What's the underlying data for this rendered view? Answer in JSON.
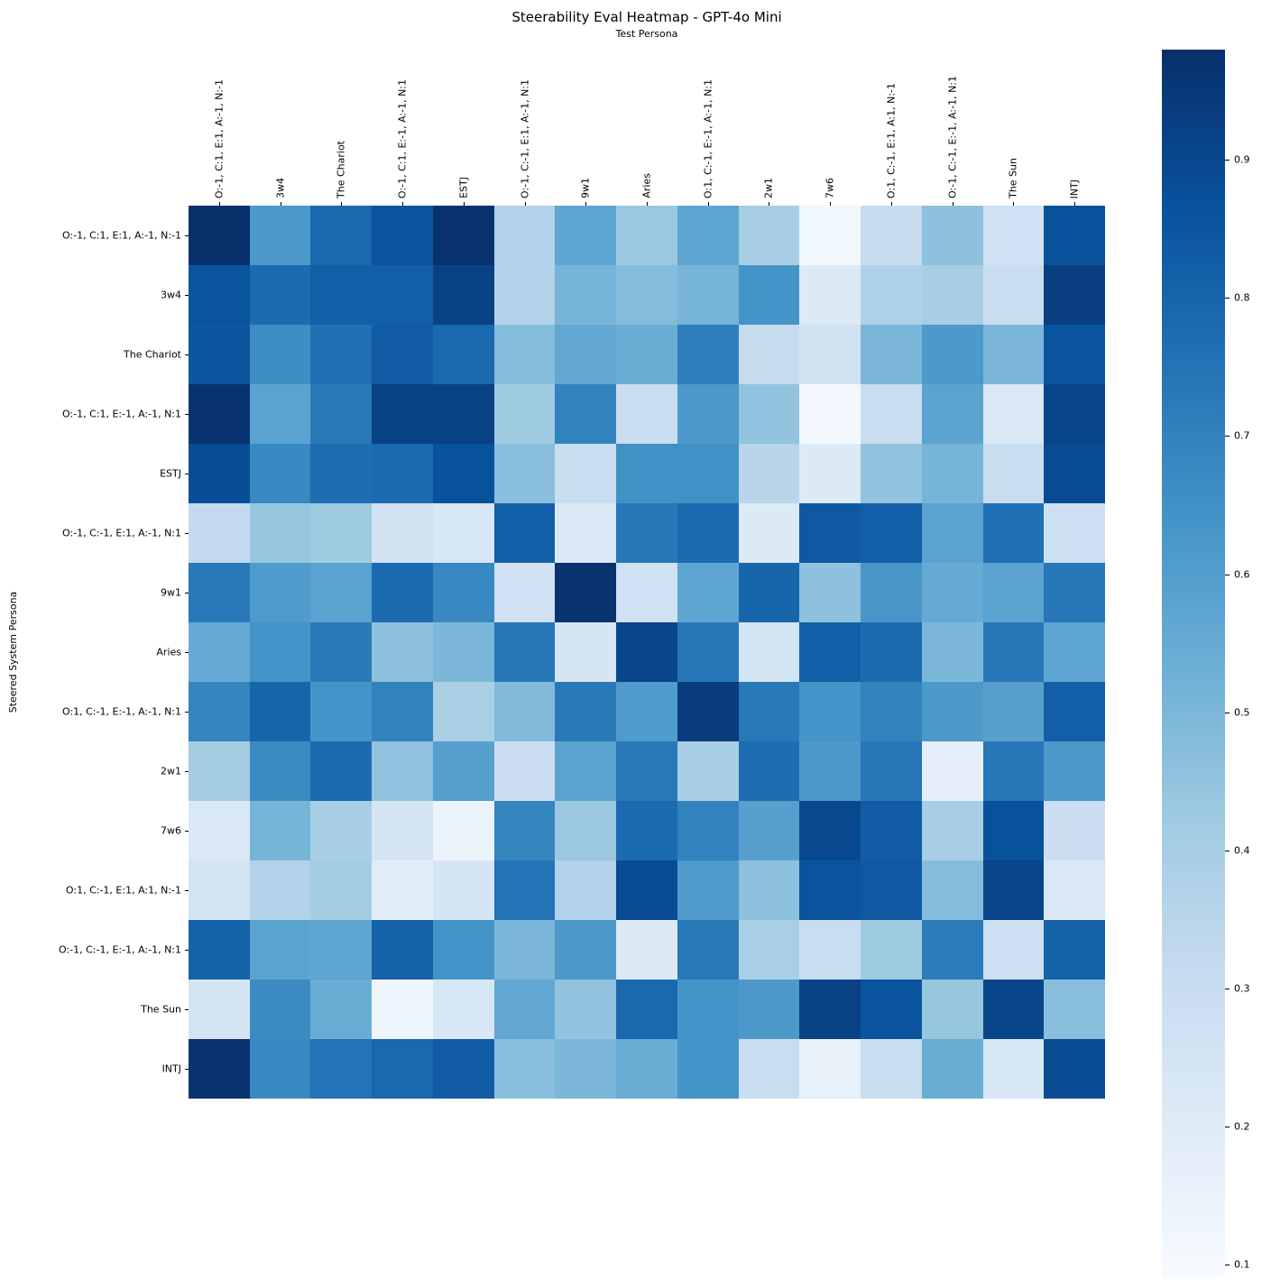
{
  "figure": {
    "title": "Steerability Eval Heatmap - GPT-4o Mini",
    "x_axis_label": "Test Persona",
    "y_axis_label": "Steered System Persona"
  },
  "chart_data": {
    "type": "heatmap",
    "title": "Steerability Eval Heatmap - GPT-4o Mini",
    "xlabel": "Test Persona",
    "ylabel": "Steered System Persona",
    "colormap": "Blues",
    "vmin": 0.09,
    "vmax": 0.98,
    "legend_position": "right-colorbar",
    "grid": false,
    "colorbar_ticks": [
      0.9,
      0.8,
      0.7,
      0.6,
      0.5,
      0.4,
      0.3,
      0.2,
      0.1
    ],
    "colormap_stops": [
      [
        0.0,
        "#f7fbff"
      ],
      [
        0.125,
        "#deebf7"
      ],
      [
        0.25,
        "#c6dbef"
      ],
      [
        0.375,
        "#9ecae1"
      ],
      [
        0.5,
        "#6baed6"
      ],
      [
        0.625,
        "#4292c6"
      ],
      [
        0.75,
        "#2171b5"
      ],
      [
        0.875,
        "#08519c"
      ],
      [
        1.0,
        "#08306b"
      ]
    ],
    "x_labels": [
      "O:-1, C:1, E:1, A:-1, N:-1",
      "3w4",
      "The Chariot",
      "O:-1, C:1, E:-1, A:-1, N:1",
      "ESTJ",
      "O:-1, C:-1, E:1, A:-1, N:1",
      "9w1",
      "Aries",
      "O:1, C:-1, E:-1, A:-1, N:1",
      "2w1",
      "7w6",
      "O:1, C:-1, E:1, A:1, N:-1",
      "O:-1, C:-1, E:-1, A:-1, N:1",
      "The Sun",
      "INTJ"
    ],
    "y_labels": [
      "O:-1, C:1, E:1, A:-1, N:-1",
      "3w4",
      "The Chariot",
      "O:-1, C:1, E:-1, A:-1, N:1",
      "ESTJ",
      "O:-1, C:-1, E:1, A:-1, N:1",
      "9w1",
      "Aries",
      "O:1, C:-1, E:-1, A:-1, N:1",
      "2w1",
      "7w6",
      "O:1, C:-1, E:1, A:1, N:-1",
      "O:-1, C:-1, E:-1, A:-1, N:1",
      "The Sun",
      "INTJ"
    ],
    "values": [
      [
        0.98,
        0.62,
        0.79,
        0.86,
        0.97,
        0.37,
        0.57,
        0.43,
        0.57,
        0.4,
        0.12,
        0.31,
        0.46,
        0.27,
        0.87
      ],
      [
        0.86,
        0.78,
        0.82,
        0.82,
        0.92,
        0.37,
        0.51,
        0.48,
        0.51,
        0.64,
        0.21,
        0.38,
        0.4,
        0.3,
        0.93
      ],
      [
        0.85,
        0.66,
        0.76,
        0.83,
        0.79,
        0.48,
        0.56,
        0.54,
        0.71,
        0.31,
        0.26,
        0.5,
        0.62,
        0.5,
        0.86
      ],
      [
        0.97,
        0.58,
        0.73,
        0.92,
        0.92,
        0.42,
        0.7,
        0.3,
        0.62,
        0.45,
        0.11,
        0.3,
        0.58,
        0.22,
        0.91
      ],
      [
        0.88,
        0.68,
        0.77,
        0.78,
        0.87,
        0.47,
        0.3,
        0.65,
        0.65,
        0.35,
        0.21,
        0.45,
        0.51,
        0.3,
        0.89
      ],
      [
        0.32,
        0.44,
        0.42,
        0.26,
        0.23,
        0.82,
        0.22,
        0.74,
        0.78,
        0.21,
        0.84,
        0.82,
        0.58,
        0.76,
        0.28
      ],
      [
        0.73,
        0.61,
        0.58,
        0.78,
        0.68,
        0.27,
        0.97,
        0.27,
        0.57,
        0.8,
        0.46,
        0.63,
        0.55,
        0.58,
        0.74
      ],
      [
        0.55,
        0.64,
        0.73,
        0.46,
        0.5,
        0.74,
        0.24,
        0.91,
        0.74,
        0.25,
        0.82,
        0.78,
        0.5,
        0.74,
        0.57
      ],
      [
        0.69,
        0.8,
        0.64,
        0.7,
        0.39,
        0.49,
        0.73,
        0.61,
        0.94,
        0.73,
        0.64,
        0.7,
        0.62,
        0.59,
        0.82
      ],
      [
        0.41,
        0.67,
        0.78,
        0.45,
        0.59,
        0.29,
        0.58,
        0.73,
        0.4,
        0.77,
        0.62,
        0.74,
        0.17,
        0.74,
        0.62
      ],
      [
        0.22,
        0.51,
        0.4,
        0.24,
        0.14,
        0.69,
        0.43,
        0.78,
        0.7,
        0.59,
        0.9,
        0.83,
        0.4,
        0.87,
        0.29
      ],
      [
        0.25,
        0.37,
        0.41,
        0.19,
        0.24,
        0.75,
        0.37,
        0.89,
        0.61,
        0.46,
        0.86,
        0.84,
        0.48,
        0.91,
        0.22
      ],
      [
        0.81,
        0.58,
        0.57,
        0.81,
        0.64,
        0.5,
        0.62,
        0.21,
        0.73,
        0.39,
        0.3,
        0.42,
        0.72,
        0.28,
        0.81
      ],
      [
        0.24,
        0.67,
        0.54,
        0.13,
        0.23,
        0.56,
        0.45,
        0.79,
        0.64,
        0.62,
        0.92,
        0.86,
        0.44,
        0.91,
        0.47
      ],
      [
        0.97,
        0.68,
        0.75,
        0.79,
        0.83,
        0.47,
        0.5,
        0.54,
        0.64,
        0.3,
        0.16,
        0.3,
        0.54,
        0.23,
        0.89
      ]
    ]
  }
}
